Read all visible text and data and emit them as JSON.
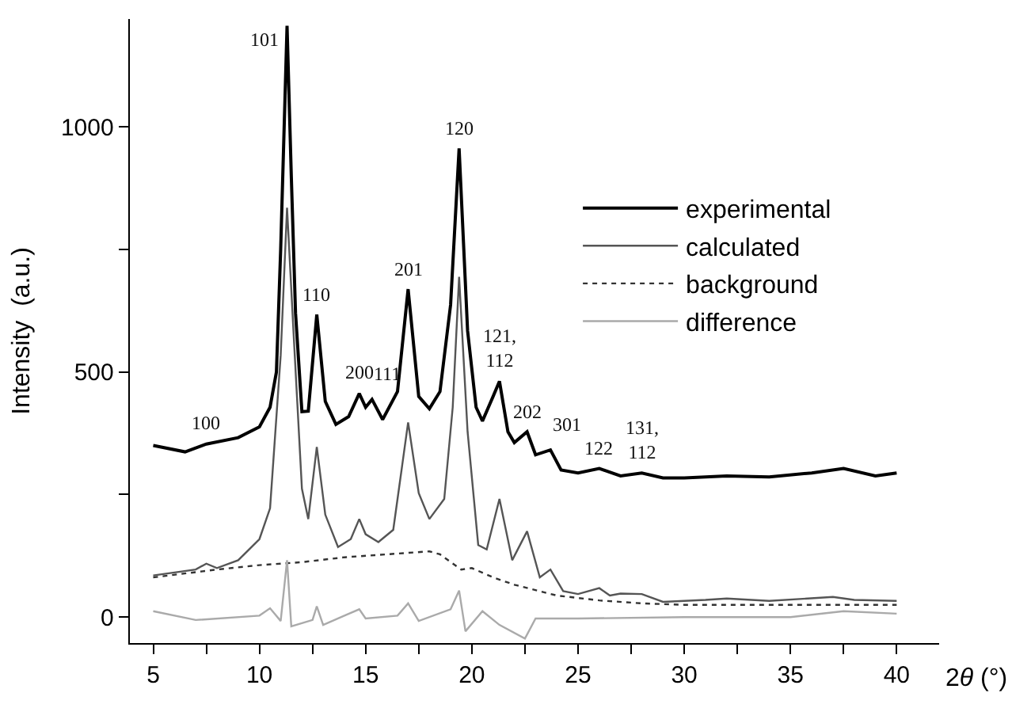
{
  "chart_data": {
    "type": "line",
    "xlabel": "2θ (°)",
    "ylabel": "Intensity  (a.u.)",
    "xlim": [
      3.9,
      42
    ],
    "ylim": [
      -53,
      1220
    ],
    "xticks": [
      5,
      {
        "value": 7.5,
        "label": null
      },
      10,
      {
        "value": 12.5,
        "label": null
      },
      15,
      {
        "value": 17.5,
        "label": null
      },
      20,
      {
        "value": 22.5,
        "label": null
      },
      25,
      {
        "value": 27.5,
        "label": null
      },
      30,
      {
        "value": 32.5,
        "label": null
      },
      35,
      {
        "value": 37.5,
        "label": null
      },
      40
    ],
    "yticks": [
      0,
      {
        "value": 250,
        "label": null
      },
      500,
      {
        "value": 750,
        "label": null
      },
      1000
    ],
    "legend": "right",
    "marker": "none",
    "series": [
      {
        "name": "experimental",
        "color": "#000000",
        "line_style": "solid",
        "x": [
          5,
          6.5,
          7.5,
          9,
          10,
          10.5,
          10.8,
          11.0,
          11.3,
          11.5,
          11.7,
          12.0,
          12.3,
          12.7,
          13.1,
          13.6,
          14.2,
          14.7,
          15.0,
          15.3,
          15.8,
          16.5,
          17.0,
          17.5,
          18.0,
          18.5,
          19.0,
          19.4,
          19.8,
          20.2,
          20.5,
          21.0,
          21.3,
          21.7,
          22.0,
          22.6,
          23.0,
          23.7,
          24.2,
          25,
          26,
          27,
          28,
          29,
          30,
          32,
          34,
          36,
          37.5,
          39,
          40
        ],
        "values": [
          350,
          337,
          353,
          366,
          388,
          428,
          500,
          750,
          1206,
          900,
          620,
          419,
          420,
          617,
          440,
          393,
          409,
          456,
          428,
          444,
          403,
          460,
          669,
          450,
          425,
          460,
          637,
          956,
          584,
          428,
          400,
          450,
          481,
          378,
          356,
          378,
          331,
          341,
          300,
          294,
          303,
          288,
          294,
          284,
          284,
          288,
          286,
          294,
          303,
          288,
          294
        ]
      },
      {
        "name": "calculated",
        "color": "#555555",
        "line_style": "solid",
        "x": [
          5,
          7.0,
          7.5,
          8,
          9,
          10,
          10.5,
          11.0,
          11.3,
          11.6,
          12.0,
          12.3,
          12.7,
          13.1,
          13.7,
          14.3,
          14.7,
          15.0,
          15.6,
          16.3,
          17.0,
          17.5,
          18.0,
          18.7,
          19.1,
          19.4,
          19.8,
          20.3,
          20.7,
          21.3,
          21.9,
          22.6,
          23.2,
          23.7,
          24.3,
          25,
          26,
          26.5,
          27,
          28,
          29,
          31,
          32,
          34,
          37,
          38,
          40
        ],
        "values": [
          85,
          97,
          109,
          100,
          116,
          159,
          222,
          534,
          835,
          585,
          262,
          200,
          347,
          209,
          143,
          159,
          200,
          169,
          153,
          178,
          397,
          253,
          200,
          241,
          428,
          694,
          378,
          147,
          138,
          241,
          116,
          175,
          81,
          97,
          53,
          47,
          59,
          44,
          48,
          47,
          31,
          35,
          38,
          33,
          41,
          35,
          33
        ]
      },
      {
        "name": "background",
        "color": "#333333",
        "line_style": "dotted",
        "x": [
          5,
          8,
          10,
          12,
          14,
          16,
          18,
          18.5,
          19.5,
          20,
          21,
          22,
          24,
          26,
          28,
          30,
          35,
          40
        ],
        "values": [
          81,
          97,
          106,
          112,
          122,
          128,
          134,
          128,
          97,
          100,
          81,
          66,
          44,
          34,
          28,
          25,
          25,
          25
        ]
      },
      {
        "name": "difference",
        "color": "#aaaaaa",
        "line_style": "solid",
        "x": [
          5,
          7,
          10,
          10.5,
          11.0,
          11.3,
          11.5,
          12.5,
          12.7,
          13,
          14,
          14.7,
          15,
          16.5,
          17.0,
          17.5,
          19.0,
          19.4,
          19.7,
          20.5,
          21.3,
          22.5,
          23,
          25,
          30,
          35,
          37.5,
          40
        ],
        "values": [
          12,
          -6,
          3,
          18,
          -8,
          116,
          -19,
          -6,
          22,
          -16,
          3,
          16,
          -3,
          3,
          28,
          -8,
          16,
          54,
          -29,
          12,
          -16,
          -44,
          -3,
          -3,
          0,
          0,
          12,
          7
        ]
      }
    ],
    "annotations": [
      {
        "text": "100",
        "x": 7.5,
        "y": 353
      },
      {
        "text": "101",
        "x": 11.3,
        "y": 1206
      },
      {
        "text": "110",
        "x": 12.7,
        "y": 617
      },
      {
        "text": "200",
        "x": 14.7,
        "y": 456
      },
      {
        "text": "111",
        "x": 15.3,
        "y": 444
      },
      {
        "text": "201",
        "x": 17.0,
        "y": 669
      },
      {
        "text": "120",
        "x": 19.4,
        "y": 956
      },
      {
        "text": "121,\n112",
        "x": 21.3,
        "y": 481
      },
      {
        "text": "202",
        "x": 22.6,
        "y": 378
      },
      {
        "text": "301",
        "x": 23.7,
        "y": 341
      },
      {
        "text": "122",
        "x": 26,
        "y": 303
      },
      {
        "text": "131,\n112",
        "x": 28,
        "y": 294
      }
    ]
  }
}
